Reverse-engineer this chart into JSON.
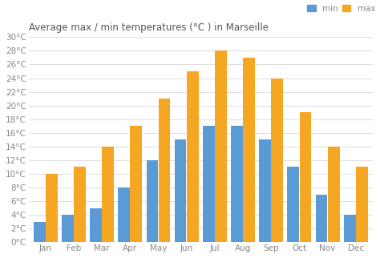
{
  "months": [
    "Jan",
    "Feb",
    "Mar",
    "Apr",
    "May",
    "Jun",
    "Jul",
    "Aug",
    "Sep",
    "Oct",
    "Nov",
    "Dec"
  ],
  "min_temps": [
    3,
    4,
    5,
    8,
    12,
    15,
    17,
    17,
    15,
    11,
    7,
    4
  ],
  "max_temps": [
    10,
    11,
    14,
    17,
    21,
    25,
    28,
    27,
    24,
    19,
    14,
    11
  ],
  "min_color": "#5b9bd5",
  "max_color": "#f5a623",
  "title": "Average max / min temperatures (°C ) in Marseille",
  "ylabel_ticks": [
    "0°C",
    "2°C",
    "4°C",
    "6°C",
    "8°C",
    "10°C",
    "12°C",
    "14°C",
    "16°C",
    "18°C",
    "20°C",
    "22°C",
    "24°C",
    "26°C",
    "28°C",
    "30°C"
  ],
  "ytick_vals": [
    0,
    2,
    4,
    6,
    8,
    10,
    12,
    14,
    16,
    18,
    20,
    22,
    24,
    26,
    28,
    30
  ],
  "ylim": [
    0,
    30
  ],
  "background_color": "#ffffff",
  "grid_color": "#e0e0e0",
  "legend_min_label": "min",
  "legend_max_label": "max",
  "bar_width": 0.42,
  "bar_gap": 0.01,
  "title_fontsize": 8.5,
  "tick_fontsize": 7.5,
  "tick_color": "#888888",
  "title_color": "#555555"
}
